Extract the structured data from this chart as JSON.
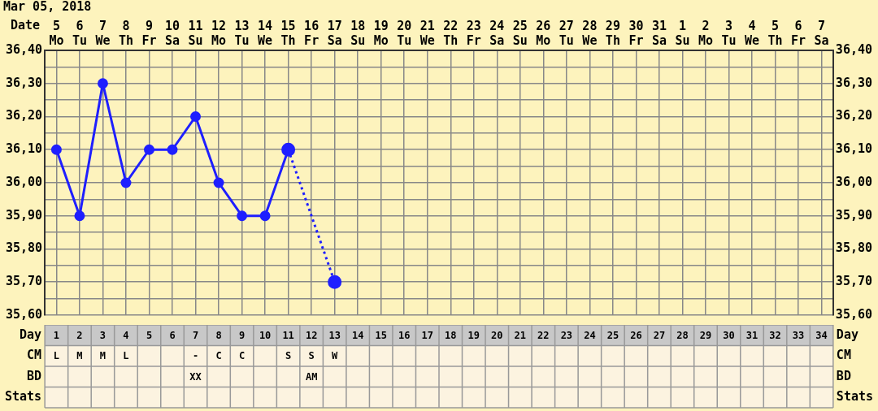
{
  "chart_data": [
    {
      "type": "line",
      "title": "Mar 05, 2018",
      "xlabel": "Date",
      "categories": [
        "5 Mo",
        "6 Tu",
        "7 We",
        "8 Th",
        "9 Fr",
        "10 Sa",
        "11 Su",
        "12 Mo",
        "13 Tu",
        "14 We",
        "15 Th",
        "16 Fr",
        "17 Sa",
        "18 Su",
        "19 Mo",
        "20 Tu",
        "21 We",
        "22 Th",
        "23 Fr",
        "24 Sa",
        "25 Su",
        "26 Mo",
        "27 Tu",
        "28 We",
        "29 Th",
        "30 Fr",
        "31 Sa",
        "1 Su",
        "2 Mo",
        "3 Tu",
        "4 We",
        "5 Th",
        "6 Fr",
        "7 Sa"
      ],
      "series": [
        {
          "color": "#1f1fff",
          "marker": "circle",
          "line_style": "solid",
          "values": [
            36.1,
            35.9,
            36.3,
            36.0,
            36.1,
            36.1,
            36.2,
            36.0,
            35.9,
            35.9,
            36.1,
            null,
            null,
            null,
            null,
            null,
            null,
            null,
            null,
            null,
            null,
            null,
            null,
            null,
            null,
            null,
            null,
            null,
            null,
            null,
            null,
            null,
            null,
            null
          ]
        },
        {
          "color": "#1f1fff",
          "marker": "circle",
          "line_style": "dotted",
          "values": [
            null,
            null,
            null,
            null,
            null,
            null,
            null,
            null,
            null,
            null,
            36.1,
            null,
            35.7,
            null,
            null,
            null,
            null,
            null,
            null,
            null,
            null,
            null,
            null,
            null,
            null,
            null,
            null,
            null,
            null,
            null,
            null,
            null,
            null,
            null
          ]
        }
      ],
      "ylim": [
        35.6,
        36.4
      ],
      "yticks": [
        {
          "value": 35.6,
          "label": "35,60"
        },
        {
          "value": 35.65,
          "label": null
        },
        {
          "value": 35.7,
          "label": "35,70"
        },
        {
          "value": 35.75,
          "label": null
        },
        {
          "value": 35.8,
          "label": "35,80"
        },
        {
          "value": 35.85,
          "label": null
        },
        {
          "value": 35.9,
          "label": "35,90"
        },
        {
          "value": 35.95,
          "label": null
        },
        {
          "value": 36.0,
          "label": "36,00"
        },
        {
          "value": 36.05,
          "label": null
        },
        {
          "value": 36.1,
          "label": "36,10"
        },
        {
          "value": 36.15,
          "label": null
        },
        {
          "value": 36.2,
          "label": "36,20"
        },
        {
          "value": 36.25,
          "label": null
        },
        {
          "value": 36.3,
          "label": "36,30"
        },
        {
          "value": 36.35,
          "label": null
        },
        {
          "value": 36.4,
          "label": "36,40"
        }
      ],
      "y2lim": [
        35.6,
        36.4
      ],
      "y2ticks": [
        {
          "value": 35.6,
          "label": "35,60"
        },
        {
          "value": 35.65,
          "label": null
        },
        {
          "value": 35.7,
          "label": "35,70"
        },
        {
          "value": 35.75,
          "label": null
        },
        {
          "value": 35.8,
          "label": "35,80"
        },
        {
          "value": 35.85,
          "label": null
        },
        {
          "value": 35.9,
          "label": "35,90"
        },
        {
          "value": 35.95,
          "label": null
        },
        {
          "value": 36.0,
          "label": "36,00"
        },
        {
          "value": 36.05,
          "label": null
        },
        {
          "value": 36.1,
          "label": "36,10"
        },
        {
          "value": 36.15,
          "label": null
        },
        {
          "value": 36.2,
          "label": "36,20"
        },
        {
          "value": 36.25,
          "label": null
        },
        {
          "value": 36.3,
          "label": "36,30"
        },
        {
          "value": 36.35,
          "label": null
        },
        {
          "value": 36.4,
          "label": "36,40"
        }
      ],
      "grid": true,
      "legend": false
    },
    {
      "type": "heatmap",
      "categories": [
        null,
        null,
        null,
        null,
        null,
        null,
        null,
        null,
        null,
        null,
        null,
        null,
        null,
        null,
        null,
        null,
        null,
        null,
        null,
        null,
        null,
        null,
        null,
        null,
        null,
        null,
        null,
        null,
        null,
        null,
        null,
        null,
        null,
        null
      ],
      "y_categories": [
        "Day",
        "CM",
        "BD",
        "Stats"
      ],
      "y2_categories": [
        "Day",
        "CM",
        "BD",
        "Stats"
      ],
      "cells": [
        [
          null,
          null,
          null,
          null,
          null,
          null,
          null,
          null,
          null,
          null,
          null,
          null,
          null,
          null,
          null,
          null,
          null,
          null,
          null,
          null,
          null,
          null,
          null,
          null,
          null,
          null,
          null,
          null,
          null,
          null,
          null,
          null,
          null,
          null
        ],
        [
          null,
          null,
          null,
          null,
          null,
          null,
          null,
          null,
          null,
          null,
          null,
          null,
          null,
          null,
          null,
          null,
          null,
          null,
          null,
          null,
          null,
          null,
          null,
          null,
          null,
          null,
          null,
          null,
          null,
          null,
          null,
          null,
          null,
          null
        ],
        [
          null,
          null,
          null,
          null,
          null,
          null,
          null,
          null,
          null,
          null,
          null,
          null,
          null,
          null,
          null,
          null,
          null,
          null,
          null,
          null,
          null,
          null,
          null,
          null,
          null,
          null,
          null,
          null,
          null,
          null,
          null,
          null,
          null,
          null
        ],
        [
          null,
          null,
          null,
          null,
          null,
          null,
          null,
          null,
          null,
          null,
          null,
          null,
          null,
          null,
          null,
          null,
          null,
          null,
          null,
          null,
          null,
          null,
          null,
          null,
          null,
          null,
          null,
          null,
          null,
          null,
          null,
          null,
          null,
          null
        ]
      ],
      "cell_labels": [
        [
          "1",
          "2",
          "3",
          "4",
          "5",
          "6",
          "7",
          "8",
          "9",
          "10",
          "11",
          "12",
          "13",
          "14",
          "15",
          "16",
          "17",
          "18",
          "19",
          "20",
          "21",
          "22",
          "23",
          "24",
          "25",
          "26",
          "27",
          "28",
          "29",
          "30",
          "31",
          "32",
          "33",
          "34"
        ],
        [
          "L",
          "M",
          "M",
          "L",
          null,
          null,
          "-",
          "C",
          "C",
          null,
          "S",
          "S",
          "W",
          null,
          null,
          null,
          null,
          null,
          null,
          null,
          null,
          null,
          null,
          null,
          null,
          null,
          null,
          null,
          null,
          null,
          null,
          null,
          null,
          null
        ],
        [
          null,
          null,
          null,
          null,
          null,
          null,
          "XX",
          null,
          null,
          null,
          null,
          "AM",
          null,
          null,
          null,
          null,
          null,
          null,
          null,
          null,
          null,
          null,
          null,
          null,
          null,
          null,
          null,
          null,
          null,
          null,
          null,
          null,
          null,
          null
        ],
        [
          null,
          null,
          null,
          null,
          null,
          null,
          null,
          null,
          null,
          null,
          null,
          null,
          null,
          null,
          null,
          null,
          null,
          null,
          null,
          null,
          null,
          null,
          null,
          null,
          null,
          null,
          null,
          null,
          null,
          null,
          null,
          null,
          null,
          null
        ]
      ]
    }
  ]
}
